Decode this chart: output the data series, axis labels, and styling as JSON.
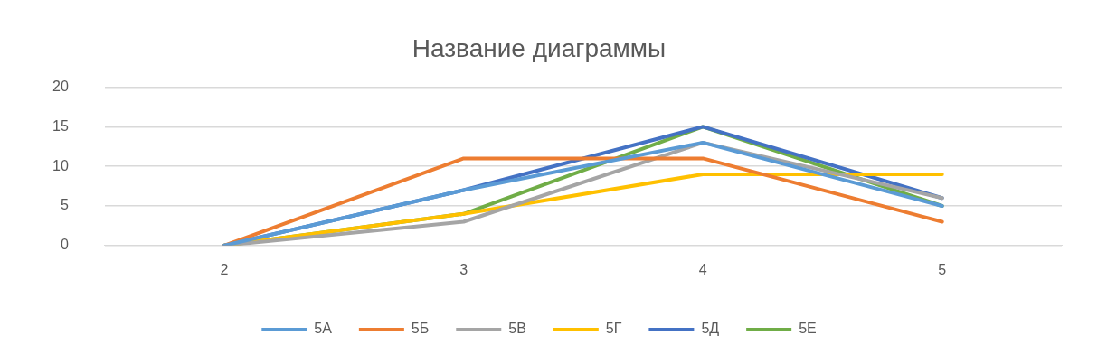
{
  "chart_data": {
    "type": "line",
    "title": "Название диаграммы",
    "categories": [
      "2",
      "3",
      "4",
      "5"
    ],
    "series": [
      {
        "name": "5А",
        "color": "#5b9bd5",
        "values": [
          0,
          7,
          13,
          5
        ]
      },
      {
        "name": "5Б",
        "color": "#ed7d31",
        "values": [
          0,
          11,
          11,
          3
        ]
      },
      {
        "name": "5В",
        "color": "#a5a5a5",
        "values": [
          0,
          3,
          13,
          6
        ]
      },
      {
        "name": "5Г",
        "color": "#ffc000",
        "values": [
          0,
          4,
          9,
          9
        ]
      },
      {
        "name": "5Д",
        "color": "#4472c4",
        "values": [
          0,
          7,
          15,
          6
        ]
      },
      {
        "name": "5Е",
        "color": "#70ad47",
        "values": [
          0,
          4,
          15,
          5
        ]
      }
    ],
    "ylim": [
      0,
      20
    ],
    "yticks": [
      0,
      5,
      10,
      15,
      20
    ],
    "grid": "y",
    "legend": "bottom",
    "marker": "none",
    "line_style": "solid"
  }
}
